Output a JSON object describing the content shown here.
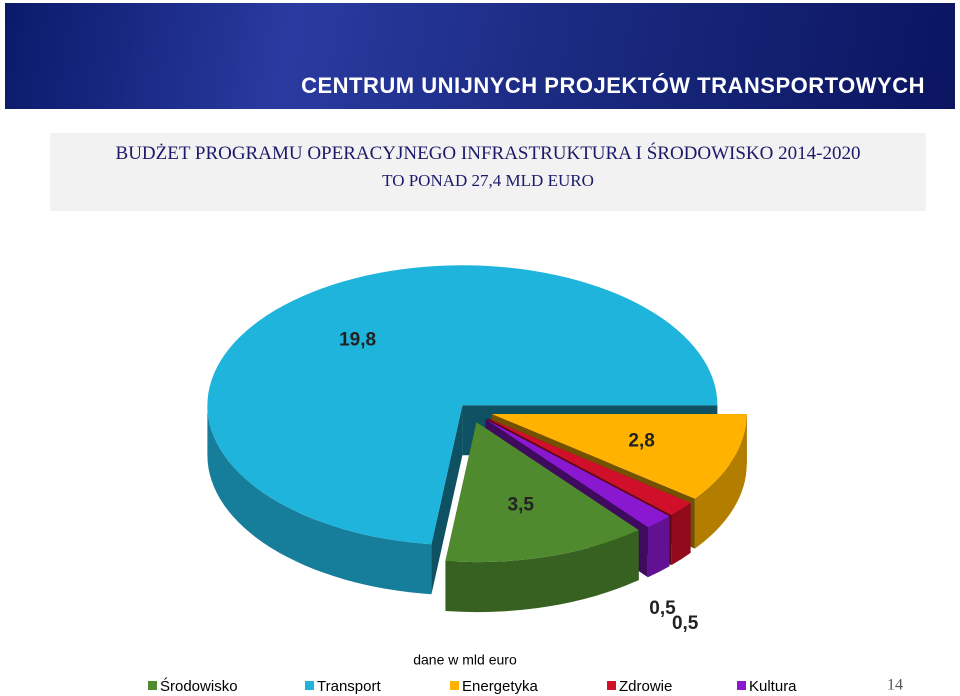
{
  "header": {
    "banner": "CENTRUM UNIJNYCH PROJEKTÓW TRANSPORTOWYCH"
  },
  "chart_data": {
    "type": "pie3d",
    "title": "BUDŻET PROGRAMU OPERACYJNEGO INFRASTRUKTURA I ŚRODOWISKO 2014-2020",
    "subtitle": "TO PONAD 27,4 MLD EURO",
    "unit_label": "dane w mld euro",
    "categories": [
      "Środowisko",
      "Transport",
      "Energetyka",
      "Zdrowie",
      "Kultura"
    ],
    "values": [
      3.5,
      19.8,
      2.8,
      0.5,
      0.5
    ],
    "value_labels": [
      "3,5",
      "19,8",
      "2,8",
      "0,5",
      "0,5"
    ],
    "colors": [
      "#4f8a2e",
      "#1fb4dc",
      "#ffb300",
      "#d0102a",
      "#8a18d0"
    ]
  },
  "page_number": "14"
}
